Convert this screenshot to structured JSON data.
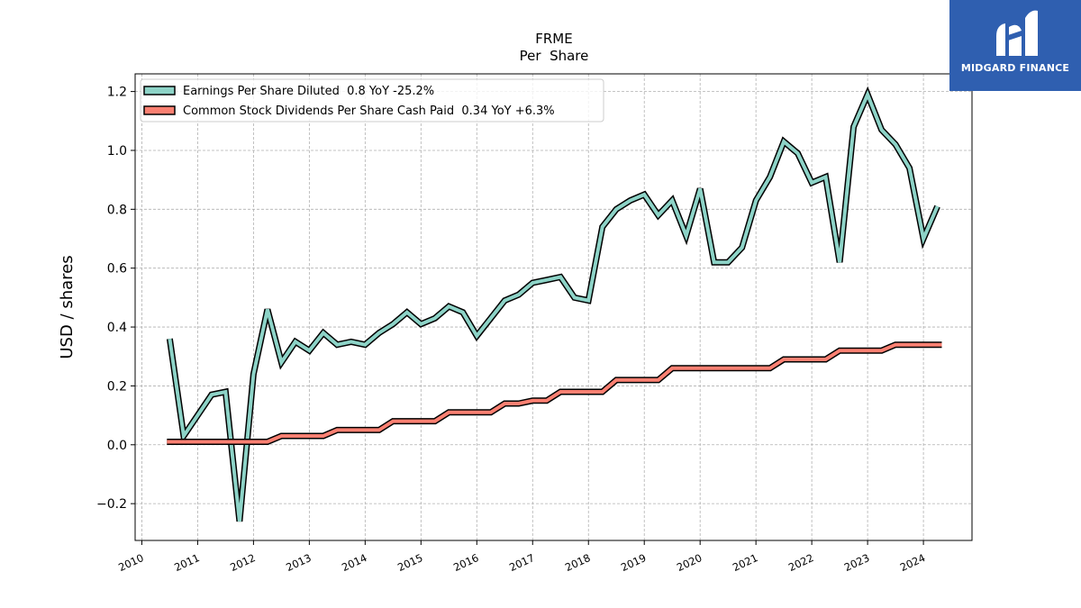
{
  "chart_data": {
    "type": "line",
    "title": "FRME",
    "subtitle": "Per  Share",
    "ylabel": "USD / shares",
    "xlabel": "",
    "xlim": [
      2009.88,
      2024.87
    ],
    "ylim": [
      -0.325,
      1.26
    ],
    "grid": true,
    "legend_position": "top-left",
    "yticks": [
      -0.2,
      0.0,
      0.2,
      0.4,
      0.6,
      0.8,
      1.0,
      1.2
    ],
    "ytick_labels": [
      "−0.2",
      "0.0",
      "0.2",
      "0.4",
      "0.6",
      "0.8",
      "1.0",
      "1.2"
    ],
    "xticks": [
      2010,
      2011,
      2012,
      2013,
      2014,
      2015,
      2016,
      2017,
      2018,
      2019,
      2020,
      2021,
      2022,
      2023,
      2024
    ],
    "xtick_labels": [
      "2010",
      "2011",
      "2012",
      "2013",
      "2014",
      "2015",
      "2016",
      "2017",
      "2018",
      "2019",
      "2020",
      "2021",
      "2022",
      "2023",
      "2024"
    ],
    "series": [
      {
        "name": "Earnings Per Share Diluted",
        "legend_label": "Earnings Per Share Diluted  0.8 YoY -25.2%",
        "color": "#8dd3c7",
        "step": false,
        "x": [
          2010.5,
          2010.75,
          2011.0,
          2011.25,
          2011.5,
          2011.75,
          2012.0,
          2012.25,
          2012.5,
          2012.75,
          2013.0,
          2013.25,
          2013.5,
          2013.75,
          2014.0,
          2014.25,
          2014.5,
          2014.75,
          2015.0,
          2015.25,
          2015.5,
          2015.75,
          2016.0,
          2016.25,
          2016.5,
          2016.75,
          2017.0,
          2017.25,
          2017.5,
          2017.75,
          2018.0,
          2018.25,
          2018.5,
          2018.75,
          2019.0,
          2019.25,
          2019.5,
          2019.75,
          2020.0,
          2020.25,
          2020.5,
          2020.75,
          2021.0,
          2021.25,
          2021.5,
          2021.75,
          2022.0,
          2022.25,
          2022.5,
          2022.75,
          2023.0,
          2023.25,
          2023.5,
          2023.75,
          2024.0,
          2024.25
        ],
        "values": [
          0.36,
          0.03,
          0.1,
          0.17,
          0.18,
          -0.26,
          0.24,
          0.46,
          0.28,
          0.35,
          0.32,
          0.38,
          0.34,
          0.35,
          0.34,
          0.38,
          0.41,
          0.45,
          0.41,
          0.43,
          0.47,
          0.45,
          0.37,
          0.43,
          0.49,
          0.51,
          0.55,
          0.56,
          0.57,
          0.5,
          0.49,
          0.74,
          0.8,
          0.83,
          0.85,
          0.78,
          0.83,
          0.71,
          0.87,
          0.62,
          0.62,
          0.67,
          0.83,
          0.91,
          1.03,
          0.99,
          0.89,
          0.91,
          0.62,
          1.08,
          1.19,
          1.07,
          1.02,
          0.94,
          0.7,
          0.81
        ]
      },
      {
        "name": "Common Stock Dividends Per Share Cash Paid",
        "legend_label": "Common Stock Dividends Per Share Cash Paid  0.34 YoY +6.3%",
        "color": "#fb8072",
        "step": true,
        "x": [
          2010.45,
          2012.25,
          2012.5,
          2013.25,
          2013.5,
          2014.25,
          2014.5,
          2015.25,
          2015.5,
          2016.25,
          2016.5,
          2016.75,
          2017.0,
          2017.25,
          2017.5,
          2018.25,
          2018.5,
          2019.25,
          2019.5,
          2021.25,
          2021.5,
          2022.25,
          2022.5,
          2023.25,
          2023.5,
          2024.33
        ],
        "values": [
          0.01,
          0.01,
          0.03,
          0.03,
          0.05,
          0.05,
          0.08,
          0.08,
          0.11,
          0.11,
          0.14,
          0.14,
          0.15,
          0.15,
          0.18,
          0.18,
          0.22,
          0.22,
          0.26,
          0.26,
          0.29,
          0.29,
          0.32,
          0.32,
          0.34,
          0.34
        ]
      }
    ]
  },
  "logo": {
    "text": "MIDGARD FINANCE",
    "bg_color": "#2f5fb0"
  }
}
